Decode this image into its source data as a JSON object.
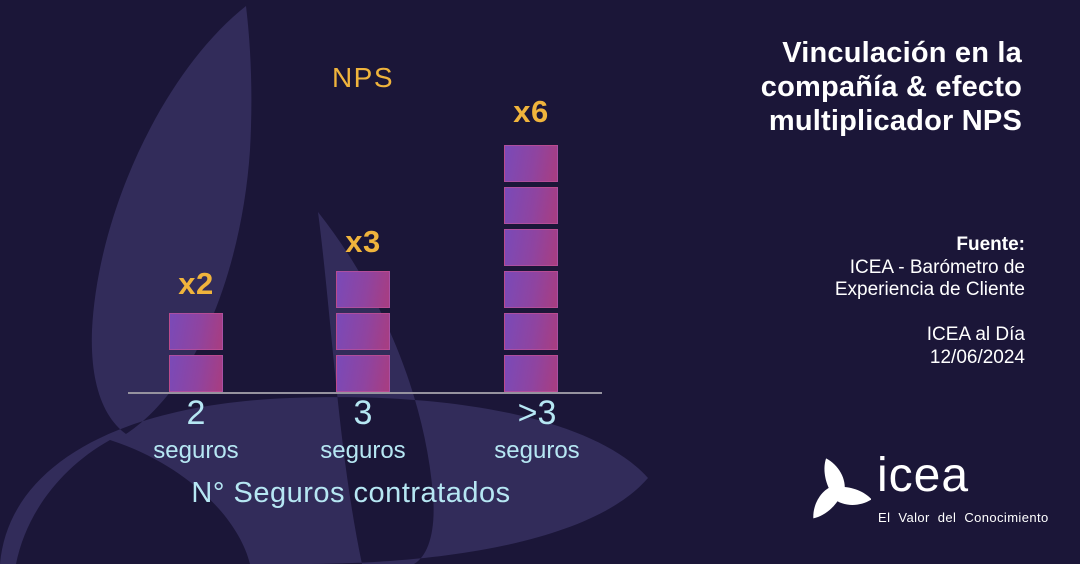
{
  "title": {
    "lines": [
      "Vinculación en la",
      "compañía & efecto",
      "multiplicador NPS"
    ]
  },
  "source": {
    "label": "Fuente:",
    "line1": "ICEA - Barómetro de",
    "line2": "Experiencia de Cliente",
    "publication": "ICEA al Día",
    "date": "12/06/2024"
  },
  "chart": {
    "nps_label": "NPS",
    "x_axis_title": "N° Seguros contratados",
    "bars": [
      {
        "multiplier": "x2",
        "category_value": "2",
        "category_unit": "seguros",
        "blocks": 2
      },
      {
        "multiplier": "x3",
        "category_value": "3",
        "category_unit": "seguros",
        "blocks": 3
      },
      {
        "multiplier": "x6",
        "category_value": ">3",
        "category_unit": "seguros",
        "blocks": 6
      }
    ]
  },
  "chart_data": {
    "type": "bar",
    "categories": [
      "2 seguros",
      "3 seguros",
      ">3 seguros"
    ],
    "values": [
      2,
      3,
      6
    ],
    "value_labels": [
      "x2",
      "x3",
      "x6"
    ],
    "series_name": "Efecto multiplicador NPS",
    "title": "Vinculación en la compañía & efecto multiplicador NPS",
    "xlabel": "N° Seguros contratados",
    "ylabel": "NPS",
    "ylim": [
      0,
      6
    ],
    "grid": false,
    "legend": false,
    "bar_style": "stacked unit blocks, one block per multiplier unit"
  },
  "logo": {
    "name": "icea",
    "tagline": "El Valor del Conocimiento"
  },
  "colors": {
    "background": "#1b1638",
    "petal_decoration": "#322c5a",
    "accent_gold": "#f0b43c",
    "accent_cyan": "#b6e7f3",
    "bar_gradient_start": "#7a4ab8",
    "bar_gradient_end": "#a83d80",
    "axis_line": "#96939f",
    "text_white": "#ffffff"
  }
}
